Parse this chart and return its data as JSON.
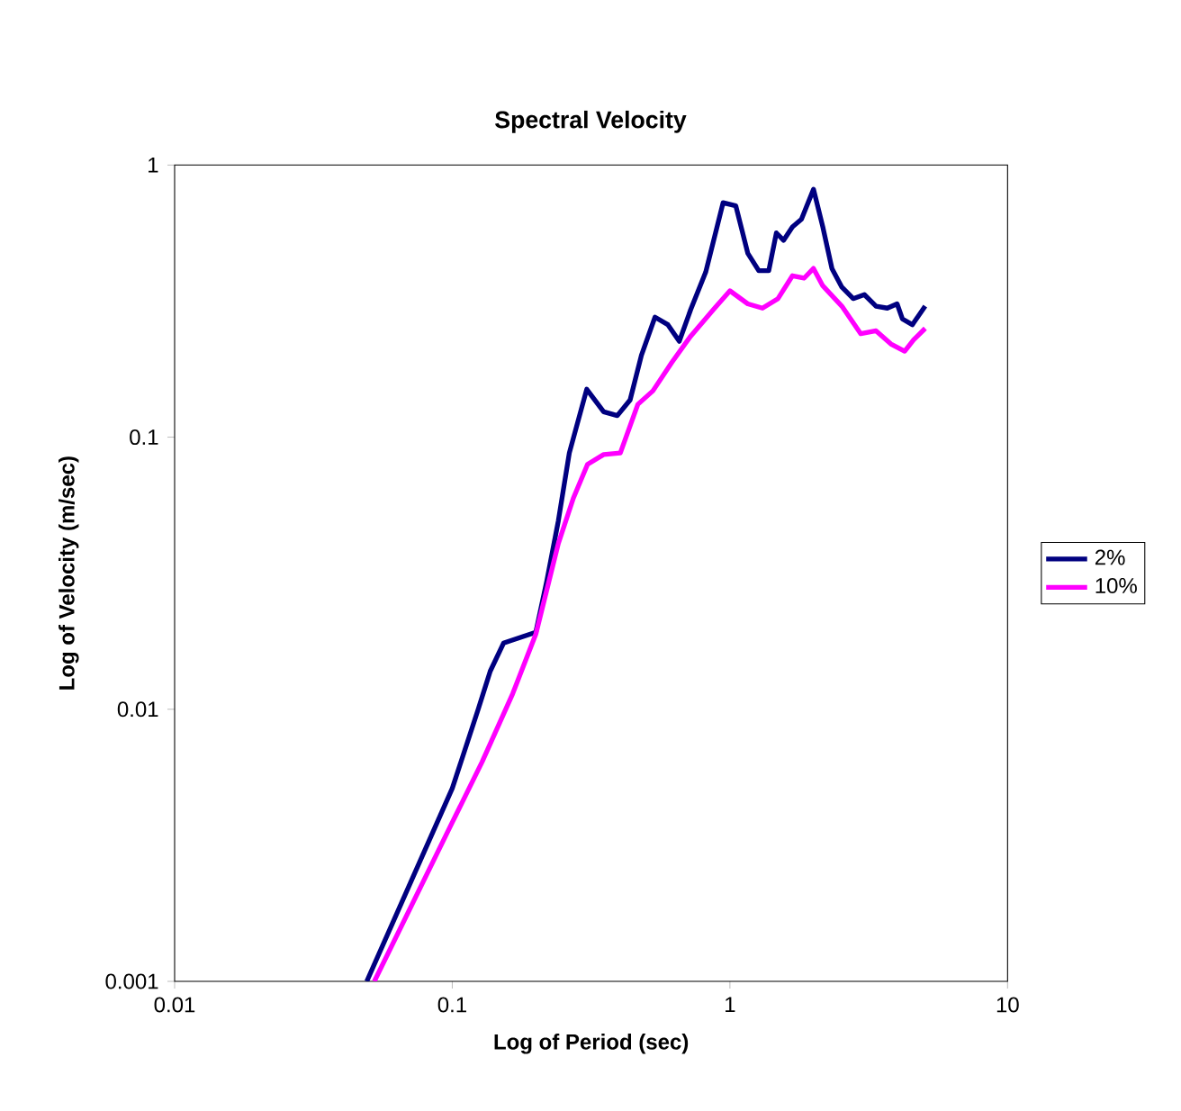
{
  "chart_data": {
    "type": "line",
    "title": "Spectral Velocity",
    "xlabel": "Log of Period (sec)",
    "ylabel": "Log of Velocity (m/sec)",
    "log": "xy",
    "xlim": [
      0.01,
      10
    ],
    "ylim": [
      0.001,
      1
    ],
    "xticks": [
      0.01,
      0.1,
      1,
      10
    ],
    "yticks": [
      0.001,
      0.01,
      0.1,
      1
    ],
    "legend": "right",
    "marker": "none",
    "line_style": "solid",
    "series": [
      {
        "name": "2%",
        "color": "#000080",
        "x": [
          0.0492,
          0.1,
          0.124,
          0.137,
          0.153,
          0.2,
          0.219,
          0.241,
          0.264,
          0.305,
          0.351,
          0.393,
          0.437,
          0.48,
          0.537,
          0.598,
          0.657,
          0.722,
          0.818,
          0.945,
          1.05,
          1.16,
          1.27,
          1.38,
          1.47,
          1.56,
          1.68,
          1.81,
          2.0,
          2.16,
          2.33,
          2.53,
          2.78,
          3.05,
          3.36,
          3.69,
          4.0,
          4.18,
          4.54,
          5.05
        ],
        "values": [
          0.001,
          0.00512,
          0.01,
          0.0138,
          0.0175,
          0.0192,
          0.0296,
          0.0493,
          0.0875,
          0.15,
          0.124,
          0.12,
          0.137,
          0.2,
          0.276,
          0.259,
          0.225,
          0.294,
          0.404,
          0.727,
          0.708,
          0.474,
          0.409,
          0.409,
          0.563,
          0.529,
          0.593,
          0.632,
          0.815,
          0.593,
          0.417,
          0.356,
          0.323,
          0.334,
          0.303,
          0.298,
          0.309,
          0.272,
          0.259,
          0.303
        ]
      },
      {
        "name": "10%",
        "color": "#ff00ff",
        "x": [
          0.0524,
          0.1,
          0.128,
          0.165,
          0.2,
          0.241,
          0.273,
          0.307,
          0.351,
          0.403,
          0.466,
          0.528,
          0.617,
          0.722,
          0.871,
          1.0,
          1.16,
          1.31,
          1.49,
          1.68,
          1.85,
          2.0,
          2.16,
          2.53,
          2.96,
          3.36,
          3.8,
          4.26,
          4.59,
          5.05
        ],
        "values": [
          0.001,
          0.00384,
          0.0064,
          0.0114,
          0.0189,
          0.0407,
          0.0597,
          0.0795,
          0.0863,
          0.0875,
          0.132,
          0.148,
          0.188,
          0.235,
          0.294,
          0.345,
          0.309,
          0.298,
          0.323,
          0.392,
          0.384,
          0.417,
          0.36,
          0.303,
          0.24,
          0.246,
          0.22,
          0.207,
          0.228,
          0.251
        ]
      }
    ]
  }
}
